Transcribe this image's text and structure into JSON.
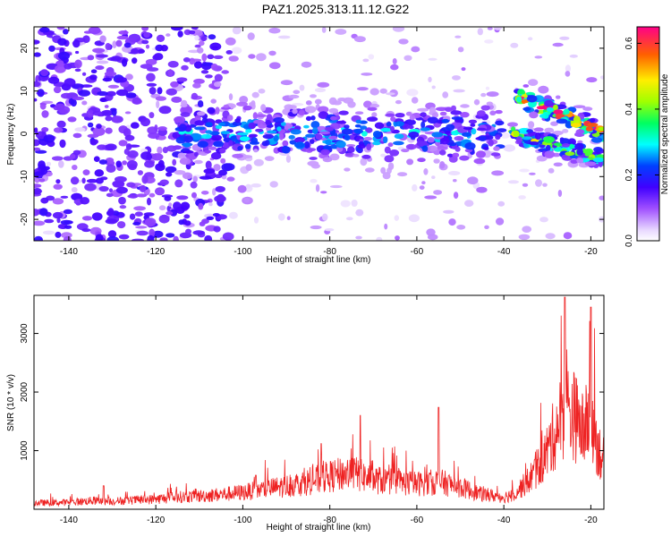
{
  "title": "PAZ1.2025.313.11.12.G22",
  "chart_data": [
    {
      "type": "heatmap",
      "title": "PAZ1.2025.313.11.12.G22",
      "xlabel": "Height of straight line (km)",
      "ylabel": "Frequency (Hz)",
      "xlim": [
        -148,
        -17
      ],
      "ylim": [
        -25,
        25
      ],
      "xticks": [
        -140,
        -120,
        -100,
        -80,
        -60,
        -40,
        -20
      ],
      "yticks": [
        -20,
        -10,
        0,
        10,
        20
      ],
      "colorbar": {
        "label": "Normalized spectral amplitude",
        "range": [
          0,
          0.65
        ],
        "ticks": [
          0,
          0.2,
          0.4,
          0.6
        ],
        "tick_labels": [
          "0.0",
          "0.2",
          "0.4",
          "0.6"
        ]
      },
      "features": [
        {
          "name": "central band",
          "x_range": [
            -115,
            -40
          ],
          "freq_hz": 0,
          "level": 0.25
        },
        {
          "name": "upper descending trace",
          "x_range": [
            -37,
            -17
          ],
          "freq_start_hz": 9,
          "freq_end_hz": 0,
          "level": 0.55
        },
        {
          "name": "lower descending trace",
          "x_range": [
            -38,
            -17
          ],
          "freq_start_hz": 0,
          "freq_end_hz": -6,
          "level": 0.4
        }
      ]
    },
    {
      "type": "line",
      "xlabel": "Height of straight line (km)",
      "ylabel": "SNR (10 * v/v)",
      "xlim": [
        -148,
        -17
      ],
      "ylim": [
        0,
        3650
      ],
      "xticks": [
        -140,
        -120,
        -100,
        -80,
        -60,
        -40,
        -20
      ],
      "yticks": [
        1000,
        2000,
        3000
      ],
      "series": [
        {
          "name": "SNR",
          "color": "#ee2222",
          "x": [
            -148,
            -140,
            -135,
            -130,
            -125,
            -120,
            -115,
            -110,
            -105,
            -100,
            -95,
            -90,
            -85,
            -80,
            -75,
            -70,
            -65,
            -60,
            -55,
            -50,
            -45,
            -40,
            -38,
            -35,
            -32,
            -30,
            -28,
            -26,
            -24,
            -22,
            -20,
            -18,
            -17
          ],
          "y": [
            120,
            130,
            160,
            150,
            170,
            190,
            230,
            250,
            280,
            320,
            380,
            440,
            520,
            620,
            700,
            560,
            520,
            480,
            520,
            420,
            280,
            230,
            280,
            480,
            800,
            1100,
            1500,
            1900,
            1800,
            1500,
            1700,
            1100,
            900
          ]
        }
      ],
      "peaks": [
        {
          "x": -132,
          "y": 400
        },
        {
          "x": -97,
          "y": 580
        },
        {
          "x": -82,
          "y": 1120
        },
        {
          "x": -73,
          "y": 1600
        },
        {
          "x": -55,
          "y": 1740
        },
        {
          "x": -26,
          "y": 3620
        },
        {
          "x": -20,
          "y": 3450
        }
      ]
    }
  ]
}
